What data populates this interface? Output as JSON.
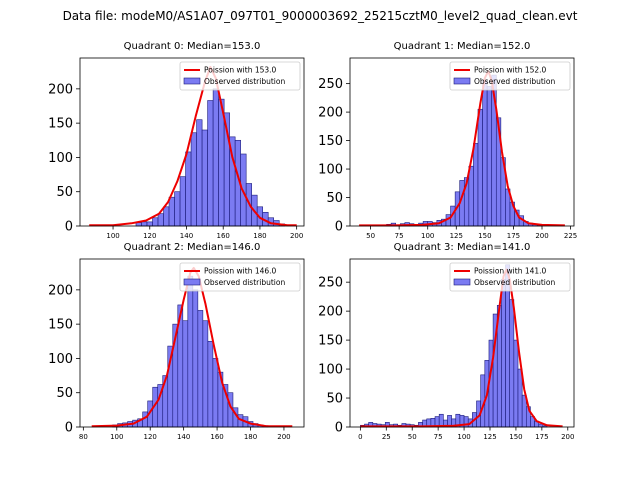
{
  "suptitle": "Data file: modeM0/AS1A07_097T01_9000003692_25215cztM0_level2_quad_clean.evt",
  "legend_labels": {
    "model": "Poission with {median}",
    "observed": "Observed distribution"
  },
  "colors": {
    "bar_fill": "#7b7bf2",
    "bar_edge": "#1a1a7a",
    "model_line": "#ee0000"
  },
  "chart_data": [
    {
      "type": "bar",
      "title": "Quadrant 0: Median=153.0",
      "median": "153.0",
      "xlim": [
        82,
        204
      ],
      "ylim": [
        0,
        245
      ],
      "xticks": [
        100,
        120,
        140,
        160,
        180,
        200
      ],
      "yticks": [
        0,
        50,
        100,
        150,
        200
      ],
      "bin_width": 3,
      "bars": [
        [
          114,
          5
        ],
        [
          117,
          6
        ],
        [
          120,
          6
        ],
        [
          123,
          12
        ],
        [
          126,
          18
        ],
        [
          129,
          28
        ],
        [
          132,
          42
        ],
        [
          135,
          50
        ],
        [
          138,
          72
        ],
        [
          141,
          108
        ],
        [
          144,
          136
        ],
        [
          147,
          155
        ],
        [
          150,
          140
        ],
        [
          153,
          183
        ],
        [
          156,
          200
        ],
        [
          159,
          185
        ],
        [
          162,
          165
        ],
        [
          165,
          130
        ],
        [
          168,
          125
        ],
        [
          171,
          105
        ],
        [
          174,
          62
        ],
        [
          177,
          45
        ],
        [
          180,
          28
        ],
        [
          183,
          20
        ],
        [
          186,
          12
        ],
        [
          189,
          8
        ],
        [
          192,
          3
        ]
      ],
      "model": [
        [
          87,
          1
        ],
        [
          100,
          1
        ],
        [
          110,
          4
        ],
        [
          118,
          8
        ],
        [
          125,
          18
        ],
        [
          130,
          35
        ],
        [
          135,
          65
        ],
        [
          140,
          105
        ],
        [
          145,
          160
        ],
        [
          150,
          210
        ],
        [
          153,
          232
        ],
        [
          156,
          215
        ],
        [
          160,
          165
        ],
        [
          165,
          100
        ],
        [
          170,
          55
        ],
        [
          175,
          28
        ],
        [
          180,
          12
        ],
        [
          186,
          4
        ],
        [
          195,
          1
        ],
        [
          200,
          1
        ]
      ]
    },
    {
      "type": "bar",
      "title": "Quadrant 1: Median=152.0",
      "median": "152.0",
      "xlim": [
        32,
        228
      ],
      "ylim": [
        0,
        295
      ],
      "xticks": [
        50,
        75,
        100,
        125,
        150,
        175,
        200,
        225
      ],
      "yticks": [
        0,
        50,
        100,
        150,
        200,
        250
      ],
      "bin_width": 4,
      "bars": [
        [
          66,
          3
        ],
        [
          70,
          5
        ],
        [
          74,
          2
        ],
        [
          78,
          4
        ],
        [
          82,
          6
        ],
        [
          86,
          4
        ],
        [
          90,
          2
        ],
        [
          94,
          5
        ],
        [
          98,
          8
        ],
        [
          102,
          8
        ],
        [
          106,
          6
        ],
        [
          110,
          10
        ],
        [
          114,
          12
        ],
        [
          118,
          20
        ],
        [
          122,
          35
        ],
        [
          126,
          60
        ],
        [
          130,
          80
        ],
        [
          134,
          85
        ],
        [
          138,
          105
        ],
        [
          142,
          145
        ],
        [
          146,
          205
        ],
        [
          150,
          255
        ],
        [
          154,
          245
        ],
        [
          158,
          265
        ],
        [
          162,
          190
        ],
        [
          166,
          120
        ],
        [
          170,
          65
        ],
        [
          174,
          42
        ],
        [
          178,
          28
        ],
        [
          182,
          18
        ],
        [
          186,
          8
        ],
        [
          190,
          5
        ],
        [
          194,
          3
        ],
        [
          198,
          2
        ]
      ],
      "model": [
        [
          40,
          1
        ],
        [
          70,
          1
        ],
        [
          95,
          2
        ],
        [
          110,
          5
        ],
        [
          120,
          15
        ],
        [
          128,
          40
        ],
        [
          134,
          75
        ],
        [
          140,
          135
        ],
        [
          146,
          215
        ],
        [
          150,
          260
        ],
        [
          153,
          272
        ],
        [
          156,
          255
        ],
        [
          160,
          205
        ],
        [
          165,
          130
        ],
        [
          170,
          70
        ],
        [
          175,
          35
        ],
        [
          180,
          15
        ],
        [
          188,
          5
        ],
        [
          200,
          2
        ],
        [
          220,
          1
        ]
      ]
    },
    {
      "type": "bar",
      "title": "Quadrant 2: Median=146.0",
      "median": "146.0",
      "xlim": [
        78,
        212
      ],
      "ylim": [
        0,
        245
      ],
      "xticks": [
        80,
        100,
        120,
        140,
        160,
        180,
        200
      ],
      "yticks": [
        0,
        50,
        100,
        150,
        200
      ],
      "bin_width": 3,
      "bars": [
        [
          99,
          3
        ],
        [
          102,
          5
        ],
        [
          105,
          6
        ],
        [
          108,
          8
        ],
        [
          111,
          10
        ],
        [
          114,
          12
        ],
        [
          117,
          22
        ],
        [
          120,
          38
        ],
        [
          123,
          58
        ],
        [
          126,
          62
        ],
        [
          129,
          75
        ],
        [
          132,
          118
        ],
        [
          135,
          150
        ],
        [
          138,
          178
        ],
        [
          141,
          155
        ],
        [
          144,
          220
        ],
        [
          147,
          200
        ],
        [
          150,
          170
        ],
        [
          153,
          155
        ],
        [
          156,
          125
        ],
        [
          159,
          100
        ],
        [
          162,
          80
        ],
        [
          165,
          62
        ],
        [
          168,
          50
        ],
        [
          171,
          28
        ],
        [
          174,
          18
        ],
        [
          177,
          15
        ],
        [
          180,
          8
        ],
        [
          183,
          5
        ],
        [
          186,
          3
        ],
        [
          189,
          2
        ]
      ],
      "model": [
        [
          85,
          1
        ],
        [
          100,
          2
        ],
        [
          110,
          5
        ],
        [
          118,
          15
        ],
        [
          125,
          40
        ],
        [
          130,
          75
        ],
        [
          135,
          130
        ],
        [
          140,
          185
        ],
        [
          144,
          225
        ],
        [
          146,
          232
        ],
        [
          149,
          220
        ],
        [
          153,
          180
        ],
        [
          158,
          120
        ],
        [
          163,
          65
        ],
        [
          168,
          30
        ],
        [
          173,
          12
        ],
        [
          180,
          5
        ],
        [
          190,
          1
        ],
        [
          205,
          1
        ]
      ]
    },
    {
      "type": "bar",
      "title": "Quadrant 3: Median=141.0",
      "median": "141.0",
      "xlim": [
        -10,
        206
      ],
      "ylim": [
        0,
        290
      ],
      "xticks": [
        0,
        25,
        50,
        75,
        100,
        125,
        150,
        175,
        200
      ],
      "yticks": [
        0,
        50,
        100,
        150,
        200,
        250
      ],
      "bin_width": 4,
      "bars": [
        [
          2,
          3
        ],
        [
          6,
          5
        ],
        [
          10,
          8
        ],
        [
          14,
          6
        ],
        [
          18,
          5
        ],
        [
          22,
          4
        ],
        [
          26,
          8
        ],
        [
          30,
          4
        ],
        [
          34,
          5
        ],
        [
          38,
          3
        ],
        [
          42,
          6
        ],
        [
          46,
          5
        ],
        [
          50,
          4
        ],
        [
          54,
          3
        ],
        [
          58,
          8
        ],
        [
          62,
          12
        ],
        [
          66,
          14
        ],
        [
          70,
          15
        ],
        [
          74,
          18
        ],
        [
          78,
          22
        ],
        [
          82,
          12
        ],
        [
          86,
          20
        ],
        [
          90,
          14
        ],
        [
          94,
          22
        ],
        [
          98,
          20
        ],
        [
          102,
          18
        ],
        [
          106,
          14
        ],
        [
          110,
          25
        ],
        [
          114,
          45
        ],
        [
          118,
          90
        ],
        [
          122,
          115
        ],
        [
          126,
          150
        ],
        [
          130,
          195
        ],
        [
          134,
          210
        ],
        [
          138,
          255
        ],
        [
          142,
          280
        ],
        [
          146,
          220
        ],
        [
          150,
          150
        ],
        [
          154,
          100
        ],
        [
          158,
          55
        ],
        [
          162,
          35
        ],
        [
          166,
          18
        ],
        [
          170,
          10
        ],
        [
          174,
          5
        ],
        [
          178,
          2
        ]
      ],
      "model": [
        [
          0,
          1
        ],
        [
          60,
          1
        ],
        [
          90,
          2
        ],
        [
          105,
          5
        ],
        [
          115,
          20
        ],
        [
          122,
          55
        ],
        [
          128,
          120
        ],
        [
          134,
          205
        ],
        [
          138,
          260
        ],
        [
          141,
          272
        ],
        [
          144,
          255
        ],
        [
          148,
          205
        ],
        [
          153,
          130
        ],
        [
          158,
          65
        ],
        [
          163,
          28
        ],
        [
          170,
          10
        ],
        [
          180,
          3
        ],
        [
          195,
          1
        ]
      ]
    }
  ]
}
